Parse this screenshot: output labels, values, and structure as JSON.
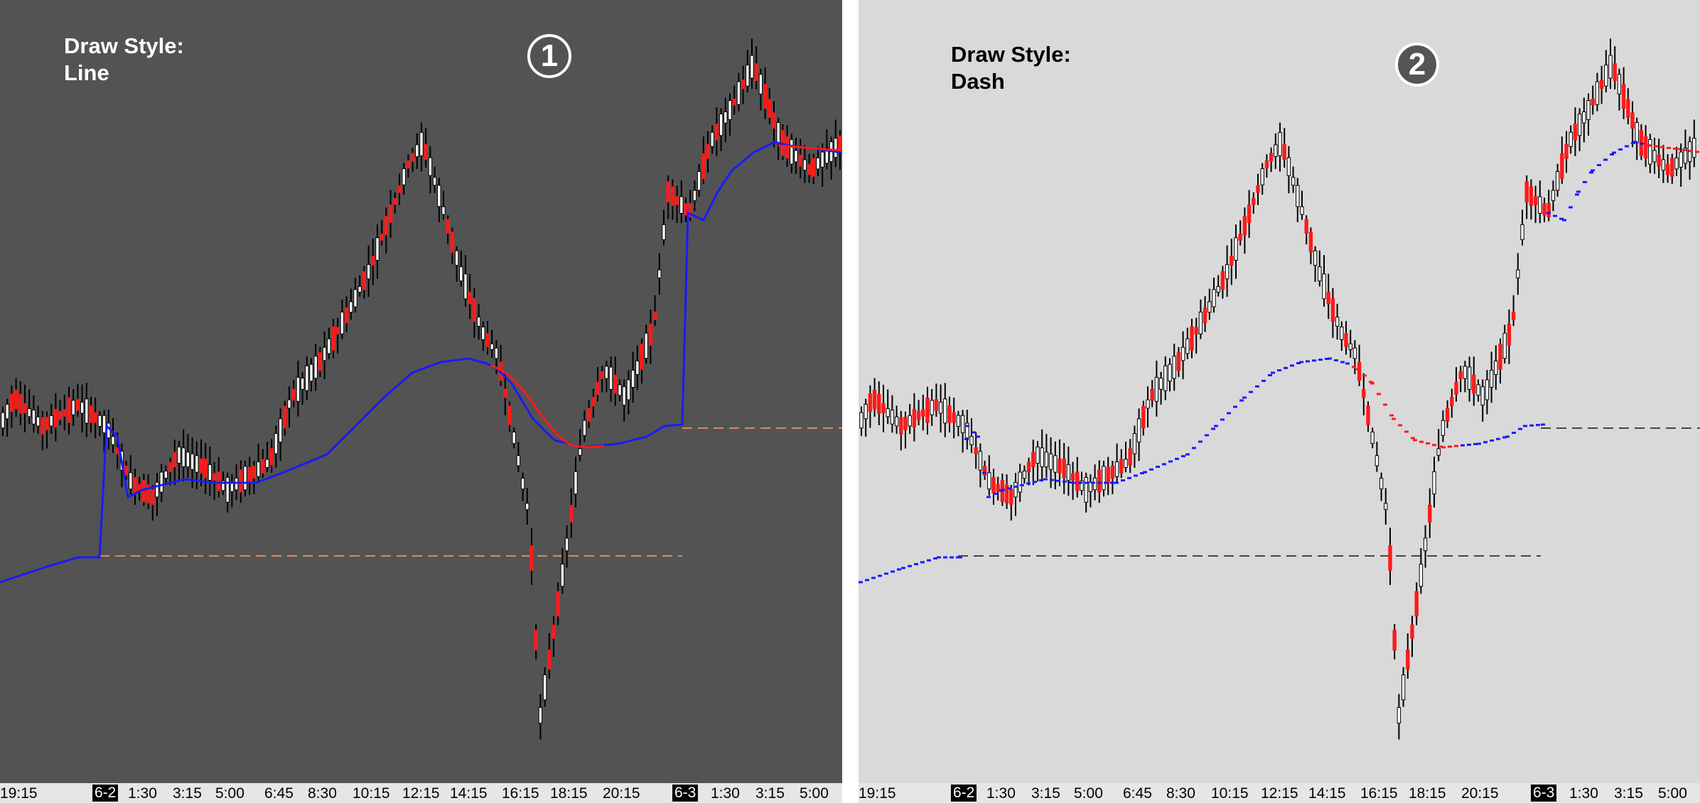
{
  "panels": [
    {
      "title_line1": "Draw Style:",
      "title_line2": "Line",
      "badge": "1",
      "draw_style": "line",
      "background": "#535353",
      "title_color": "#ffffff",
      "badge_fill": "transparent",
      "axis_ticks": [
        "19:15",
        "6-2",
        "1:30",
        "3:15",
        "5:00",
        "6:45",
        "8:30",
        "10:15",
        "12:15",
        "14:15",
        "16:15",
        "18:15",
        "20:15",
        "6-3",
        "1:30",
        "3:15",
        "5:00"
      ]
    },
    {
      "title_line1": "Draw Style:",
      "title_line2": "Dash",
      "badge": "2",
      "draw_style": "dash",
      "background": "#d9d9d9",
      "title_color": "#000000",
      "badge_fill": "#555555",
      "axis_ticks": [
        "19:15",
        "6-2",
        "1:30",
        "3:15",
        "5:00",
        "6:45",
        "8:30",
        "10:15",
        "12:15",
        "14:15",
        "16:15",
        "18:15",
        "20:15",
        "6-3",
        "1:30",
        "3:15",
        "5:00"
      ]
    }
  ],
  "colors": {
    "up_candle_dark": "#ffffff",
    "up_candle_light": "#ffffff",
    "down_candle": "#ff1a1a",
    "wick": "#000000",
    "vwap_up": "#1a1aff",
    "vwap_down": "#ff1a1a",
    "ref_line_dark": "#d98c5f",
    "ref_line_light": "#444444"
  }
}
